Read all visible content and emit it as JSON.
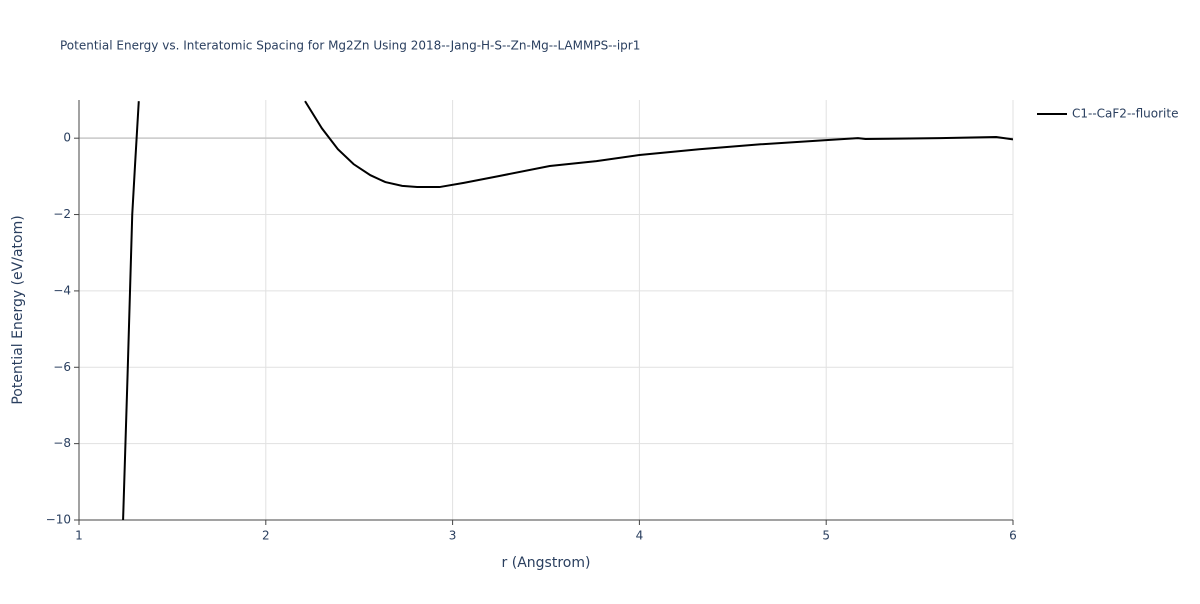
{
  "chart_data": {
    "type": "line",
    "title": "Potential Energy vs. Interatomic Spacing for Mg2Zn Using 2018--Jang-H-S--Zn-Mg--LAMMPS--ipr1",
    "x_label": "r (Angstrom)",
    "y_label": "Potential Energy (eV/atom)",
    "x": [
      1.236,
      1.26,
      1.285,
      1.3,
      1.32,
      null,
      2.21,
      2.3,
      2.386,
      2.47,
      2.56,
      2.64,
      2.73,
      2.81,
      2.93,
      3.06,
      3.25,
      3.52,
      3.77,
      4.0,
      4.32,
      4.65,
      5.0,
      5.17,
      5.21,
      5.61,
      5.91,
      6.0
    ],
    "series": [
      {
        "name": "C1--CaF2--fluorite",
        "color": "#000000",
        "values": [
          -10,
          -6.2,
          -2,
          -0.7,
          0.97,
          null,
          0.97,
          0.26,
          -0.29,
          -0.68,
          -0.97,
          -1.15,
          -1.25,
          -1.28,
          -1.28,
          -1.17,
          -0.99,
          -0.73,
          -0.6,
          -0.44,
          -0.29,
          -0.16,
          -0.05,
          0.0,
          -0.02,
          0.0,
          0.03,
          -0.03
        ]
      }
    ],
    "xlim": [
      1,
      6
    ],
    "ylim": [
      -10,
      1
    ],
    "xticks": [
      1,
      2,
      3,
      4,
      5,
      6
    ],
    "yticks": [
      {
        "value": -10,
        "label": "−10"
      },
      {
        "value": -8,
        "label": "−8"
      },
      {
        "value": -6,
        "label": "−6"
      },
      {
        "value": -4,
        "label": "−4"
      },
      {
        "value": -2,
        "label": "−2"
      },
      0
    ],
    "grid": true,
    "legend": "top-right"
  }
}
